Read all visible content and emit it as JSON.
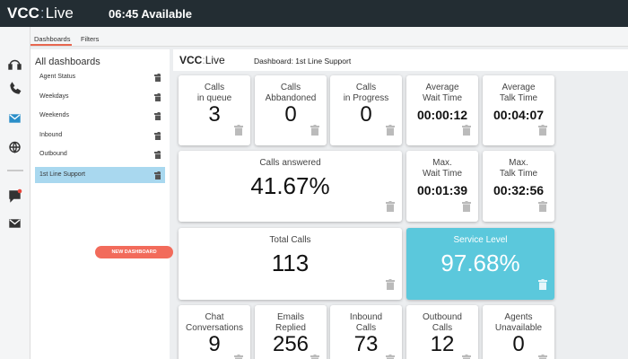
{
  "topbar": {
    "brand": "VCC",
    "brand_suffix": "Live",
    "status": "06:45 Available"
  },
  "tabs": [
    "Dashboards",
    "Filters"
  ],
  "sidebar": {
    "title": "All dashboards",
    "items": [
      "Agent Status",
      "Weekdays",
      "Weekends",
      "Inbound",
      "Outbound",
      "1st Line Support"
    ],
    "button": "NEW DASHBOARD"
  },
  "header": {
    "brand": "VCC",
    "brand_suffix": "Live",
    "title": "Dashboard: 1st Line Support"
  },
  "tiles": [
    {
      "label": [
        "Calls",
        "in queue"
      ],
      "value": 3
    },
    {
      "label": [
        "Calls",
        "Abbandoned"
      ],
      "value": 0
    },
    {
      "label": [
        "Calls",
        "in Progress"
      ],
      "value": 0
    },
    {
      "label": [
        "Average",
        "Wait Time"
      ],
      "value": "00:00:12"
    },
    {
      "label": [
        "Average",
        "Talk Time"
      ],
      "value": "00:04:07"
    },
    {
      "label": [
        "Calls answered"
      ],
      "value": "41.67%"
    },
    {
      "label": [
        "Max.",
        "Wait Time"
      ],
      "value": "00:01:39"
    },
    {
      "label": [
        "Max.",
        "Talk Time"
      ],
      "value": "00:32:56"
    },
    {
      "label": [
        "Total Calls"
      ],
      "value": 113
    },
    {
      "label": [
        "Service Level"
      ],
      "value": "97.68%"
    },
    {
      "label": [
        "Chat",
        "Conversations"
      ],
      "value": 9
    },
    {
      "label": [
        "Emails",
        "Replied"
      ],
      "value": 256
    },
    {
      "label": [
        "Inbound",
        "Calls"
      ],
      "value": 73
    },
    {
      "label": [
        "Outbound",
        "Calls"
      ],
      "value": 12
    },
    {
      "label": [
        "Agents",
        "Unavailable"
      ],
      "value": 0
    }
  ]
}
